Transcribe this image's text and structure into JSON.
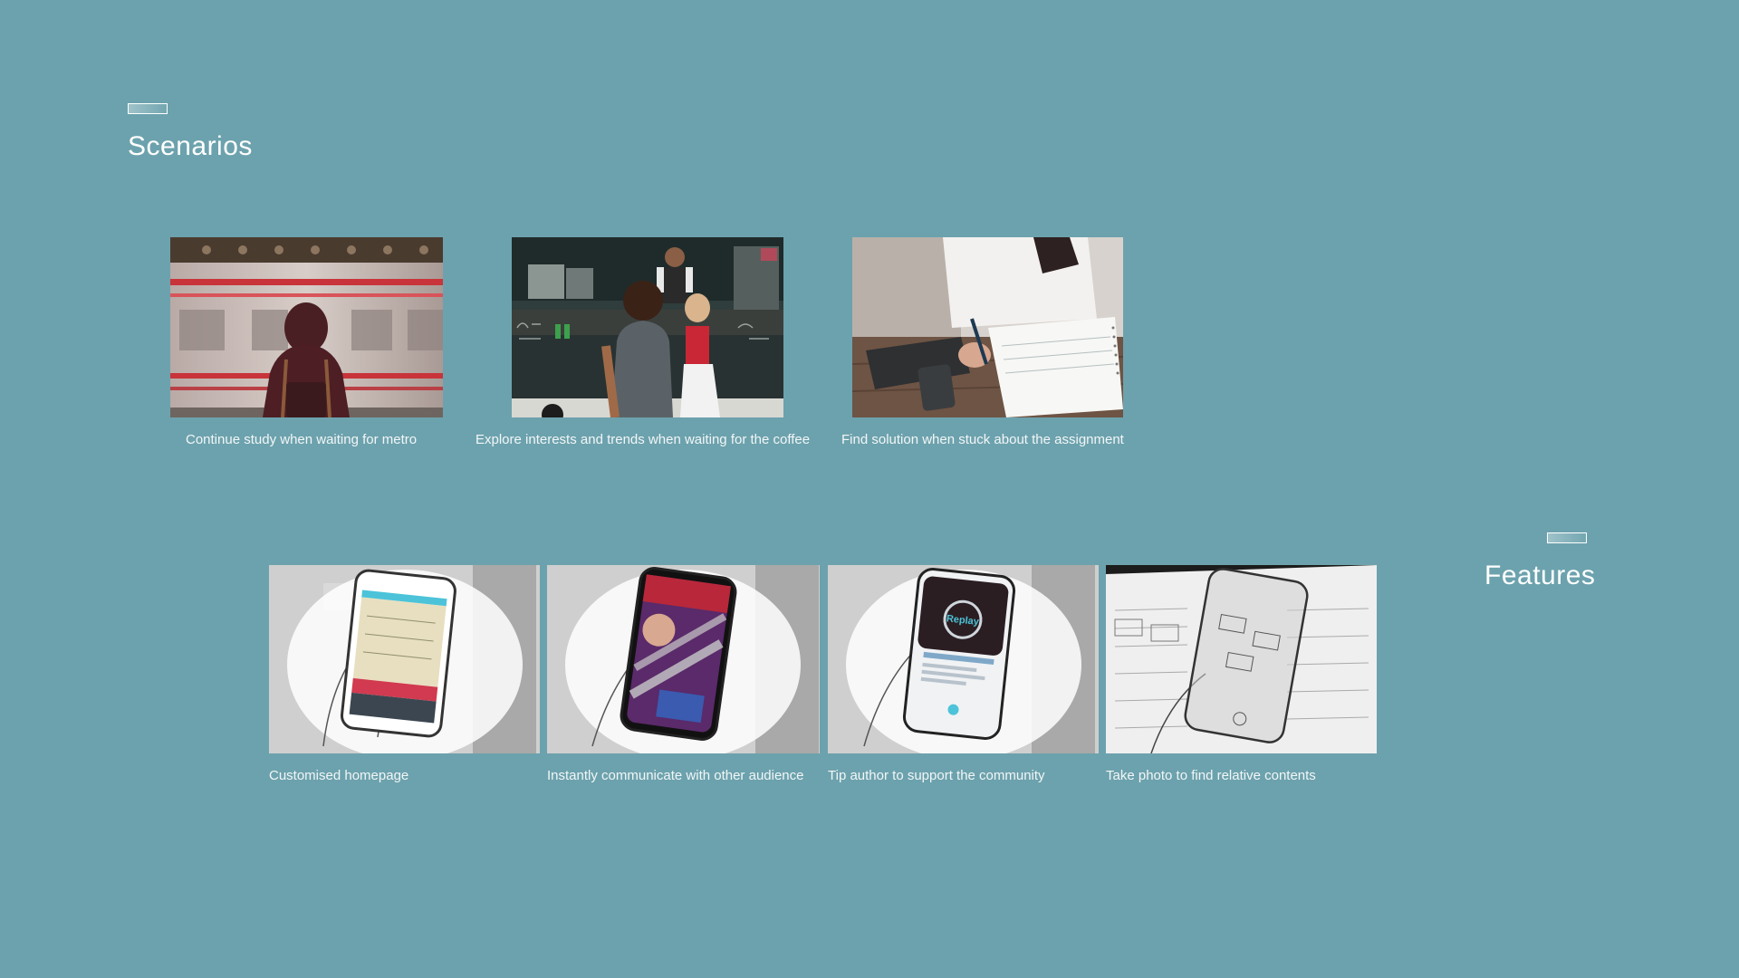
{
  "scenarios": {
    "title": "Scenarios",
    "items": [
      {
        "caption": "Continue study when waiting for metro",
        "image": "metro-platform-photo"
      },
      {
        "caption": "Explore interests and trends when waiting for the coffee",
        "image": "coffee-truck-photo"
      },
      {
        "caption": "Find solution when stuck about the assignment",
        "image": "writing-notebook-photo"
      }
    ]
  },
  "features": {
    "title": "Features",
    "items": [
      {
        "caption": "Customised homepage",
        "image": "phone-homepage-sketch"
      },
      {
        "caption": "Instantly communicate with other audience",
        "image": "phone-live-chat-sketch"
      },
      {
        "caption": "Tip author to support the community",
        "image": "phone-tip-sketch",
        "screen_text": "Replay"
      },
      {
        "caption": "Take photo to find relative contents",
        "image": "phone-camera-scan-sketch"
      }
    ]
  },
  "colors": {
    "background": "#6ca2ad",
    "text": "#ffffff"
  }
}
